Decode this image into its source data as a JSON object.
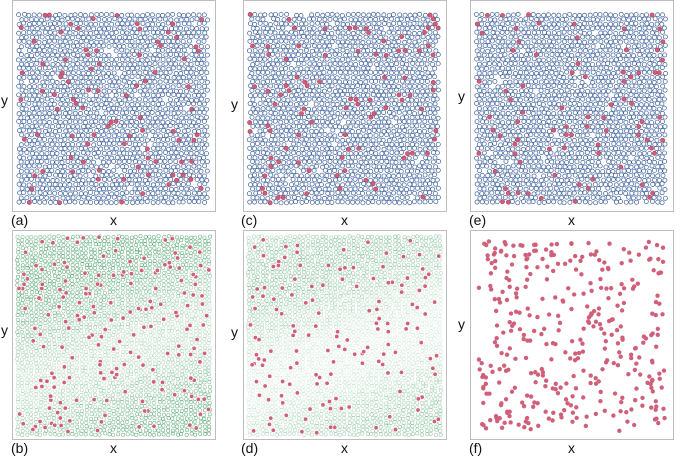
{
  "panels": [
    {
      "label": "(a)",
      "xlabel": "x",
      "ylabel": "y",
      "style": "hex-dense"
    },
    {
      "label": "(b)",
      "xlabel": "x",
      "ylabel": "y",
      "style": "green-mesh"
    },
    {
      "label": "(c)",
      "xlabel": "x",
      "ylabel": "y",
      "style": "hex-dense"
    },
    {
      "label": "(d)",
      "xlabel": "x",
      "ylabel": "y",
      "style": "green-mesh-light"
    },
    {
      "label": "(e)",
      "xlabel": "x",
      "ylabel": "y",
      "style": "hex-dense"
    },
    {
      "label": "(f)",
      "xlabel": "x",
      "ylabel": "y",
      "style": "sparse-red"
    }
  ],
  "colors": {
    "particle_blue": "#3b5f9a",
    "particle_red": "#d0607a",
    "mesh_green": "#3a9a5a",
    "frame": "#bdbdbd"
  }
}
